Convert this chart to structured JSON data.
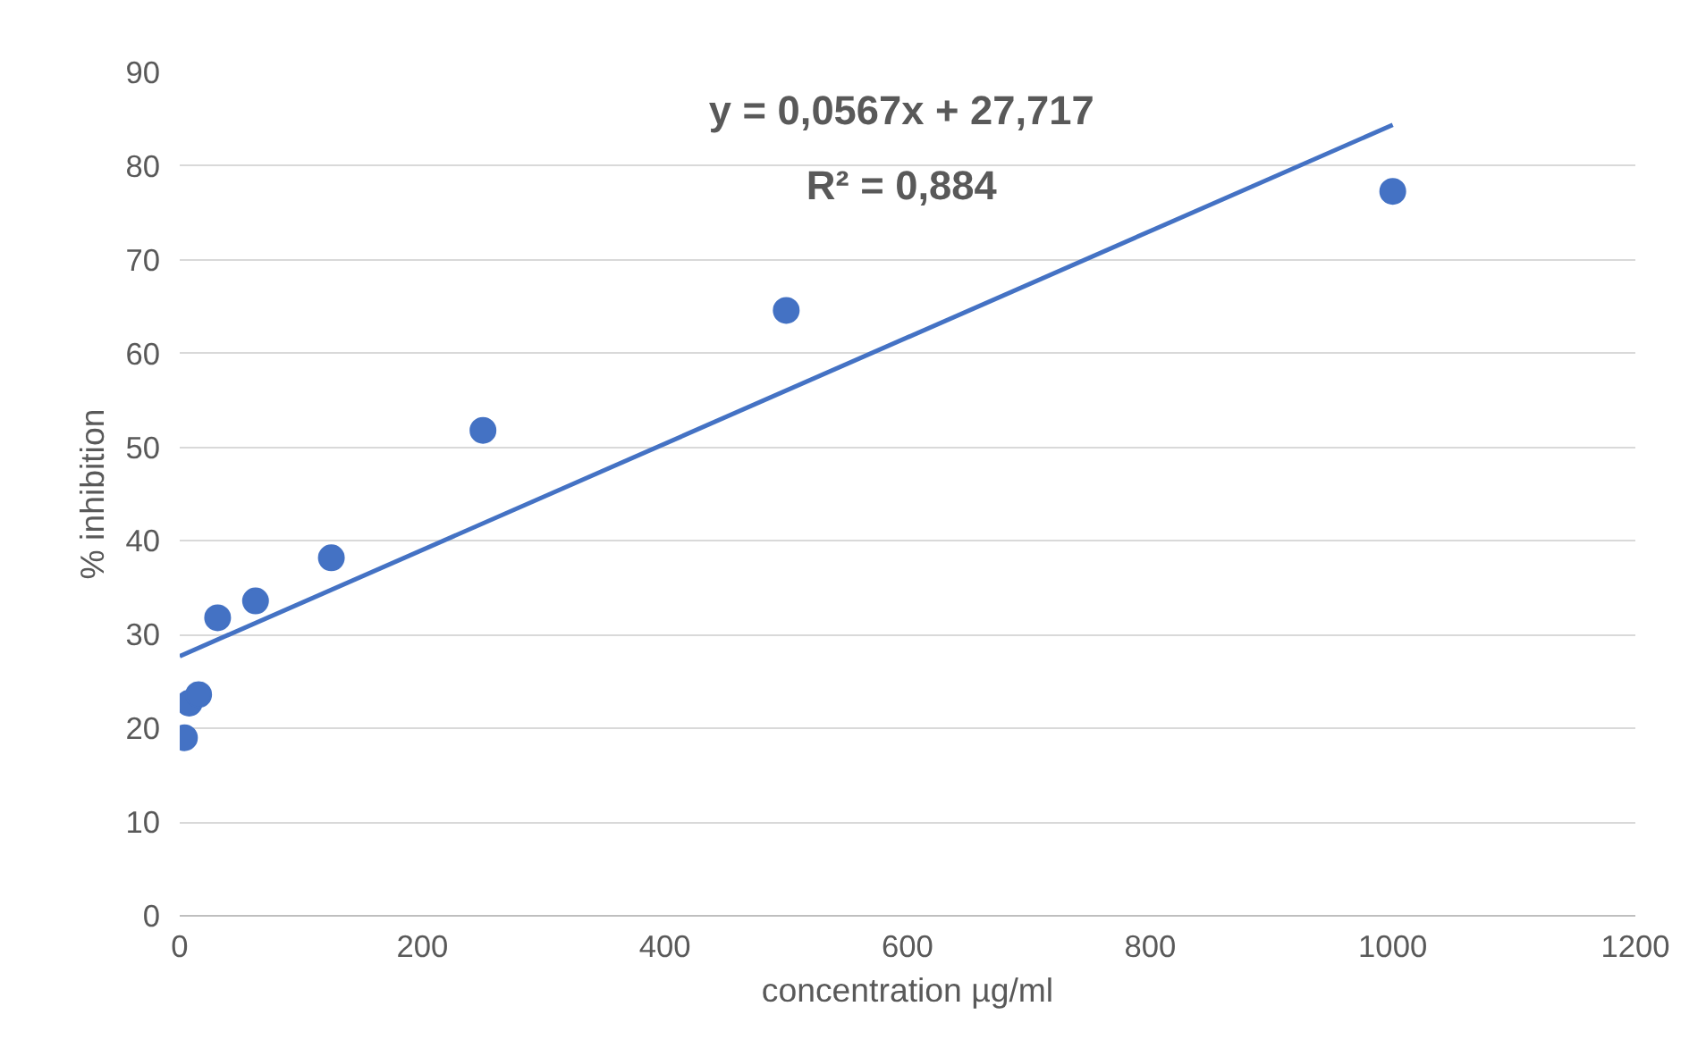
{
  "chart_data": {
    "type": "scatter",
    "xlabel": "concentration µg/ml",
    "ylabel": "% inhibition",
    "annotations": [
      "y = 0,0567x + 27,717",
      "R² = 0,884"
    ],
    "x": [
      3.9,
      7.8,
      15.6,
      31.25,
      62.5,
      125,
      250,
      500,
      1000
    ],
    "series": [
      {
        "color": "#4472c4",
        "marker": "circle",
        "values": [
          19.0,
          22.7,
          23.6,
          31.8,
          33.6,
          38.2,
          51.8,
          64.6,
          77.3
        ]
      },
      {
        "type": "line",
        "marker": "none",
        "color": "#4472c4",
        "x": [
          0,
          1000
        ],
        "values": [
          27.7,
          84.4
        ]
      }
    ],
    "xlim": [
      0,
      1200
    ],
    "xticks": [
      0,
      200,
      400,
      600,
      800,
      1000,
      1200
    ],
    "ylim": [
      0,
      90
    ],
    "yticks": [
      0,
      10,
      20,
      30,
      40,
      50,
      60,
      70,
      80,
      90
    ],
    "grid": "y"
  }
}
